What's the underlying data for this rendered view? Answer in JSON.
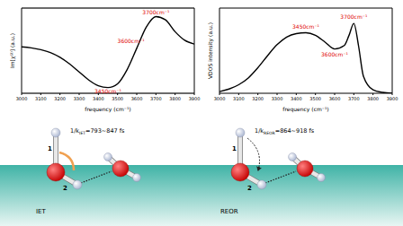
{
  "chart_data": [
    {
      "type": "line",
      "y_label": "Im[χ⁽²⁾] (a.u.)",
      "x_label": "frequency (cm⁻¹)",
      "x": [
        3000,
        3050,
        3100,
        3150,
        3200,
        3250,
        3300,
        3350,
        3400,
        3450,
        3500,
        3550,
        3600,
        3650,
        3700,
        3750,
        3800,
        3850,
        3900
      ],
      "values": [
        -0.02,
        -0.04,
        -0.08,
        -0.14,
        -0.24,
        -0.38,
        -0.55,
        -0.72,
        -0.84,
        -0.88,
        -0.8,
        -0.5,
        -0.05,
        0.4,
        0.62,
        0.55,
        0.3,
        0.12,
        0.04
      ],
      "xlim": [
        3000,
        3900
      ],
      "ylim": [
        -1,
        0.8
      ],
      "xticks": [
        3000,
        3100,
        3200,
        3300,
        3400,
        3500,
        3600,
        3700,
        3800,
        3900
      ],
      "yticks": [
        0
      ],
      "grid": true,
      "tick_labels": "x",
      "color": "#000000",
      "annotations": [
        {
          "text": "3450cm⁻¹",
          "x": 3450,
          "y": -0.96
        },
        {
          "text": "3600cm⁻¹",
          "x": 3570,
          "y": 0.1
        },
        {
          "text": "3700cm⁻¹",
          "x": 3700,
          "y": 0.7
        }
      ]
    },
    {
      "type": "line",
      "y_label": "VDOS intensity (a.u.)",
      "x_label": "frequency (cm⁻¹)",
      "x": [
        3000,
        3050,
        3100,
        3150,
        3200,
        3250,
        3300,
        3350,
        3400,
        3450,
        3500,
        3550,
        3600,
        3650,
        3675,
        3700,
        3725,
        3750,
        3800,
        3850,
        3900
      ],
      "values": [
        0.02,
        0.05,
        0.1,
        0.18,
        0.3,
        0.44,
        0.57,
        0.66,
        0.7,
        0.71,
        0.68,
        0.6,
        0.52,
        0.56,
        0.68,
        0.82,
        0.55,
        0.2,
        0.04,
        0.01,
        0
      ],
      "xlim": [
        3000,
        3900
      ],
      "ylim": [
        0,
        1
      ],
      "xticks": [
        3000,
        3100,
        3200,
        3300,
        3400,
        3500,
        3600,
        3700,
        3800,
        3900
      ],
      "yticks": [],
      "grid": false,
      "tick_labels": "x",
      "color": "#000000",
      "annotations": [
        {
          "text": "3450cm⁻¹",
          "x": 3450,
          "y": 0.78
        },
        {
          "text": "3600cm⁻¹",
          "x": 3600,
          "y": 0.45
        },
        {
          "text": "3700cm⁻¹",
          "x": 3700,
          "y": 0.9
        }
      ]
    }
  ],
  "diagram": {
    "panels": [
      {
        "label": "IET",
        "rate": {
          "prefix": "1/k",
          "sub": "IET",
          "suffix": "=793~847 fs"
        },
        "bonds": [
          "1",
          "2"
        ]
      },
      {
        "label": "REOR",
        "rate": {
          "prefix": "1/k",
          "sub": "REOR",
          "suffix": "=864~918 fs"
        },
        "bonds": [
          "1",
          "2"
        ]
      }
    ]
  }
}
